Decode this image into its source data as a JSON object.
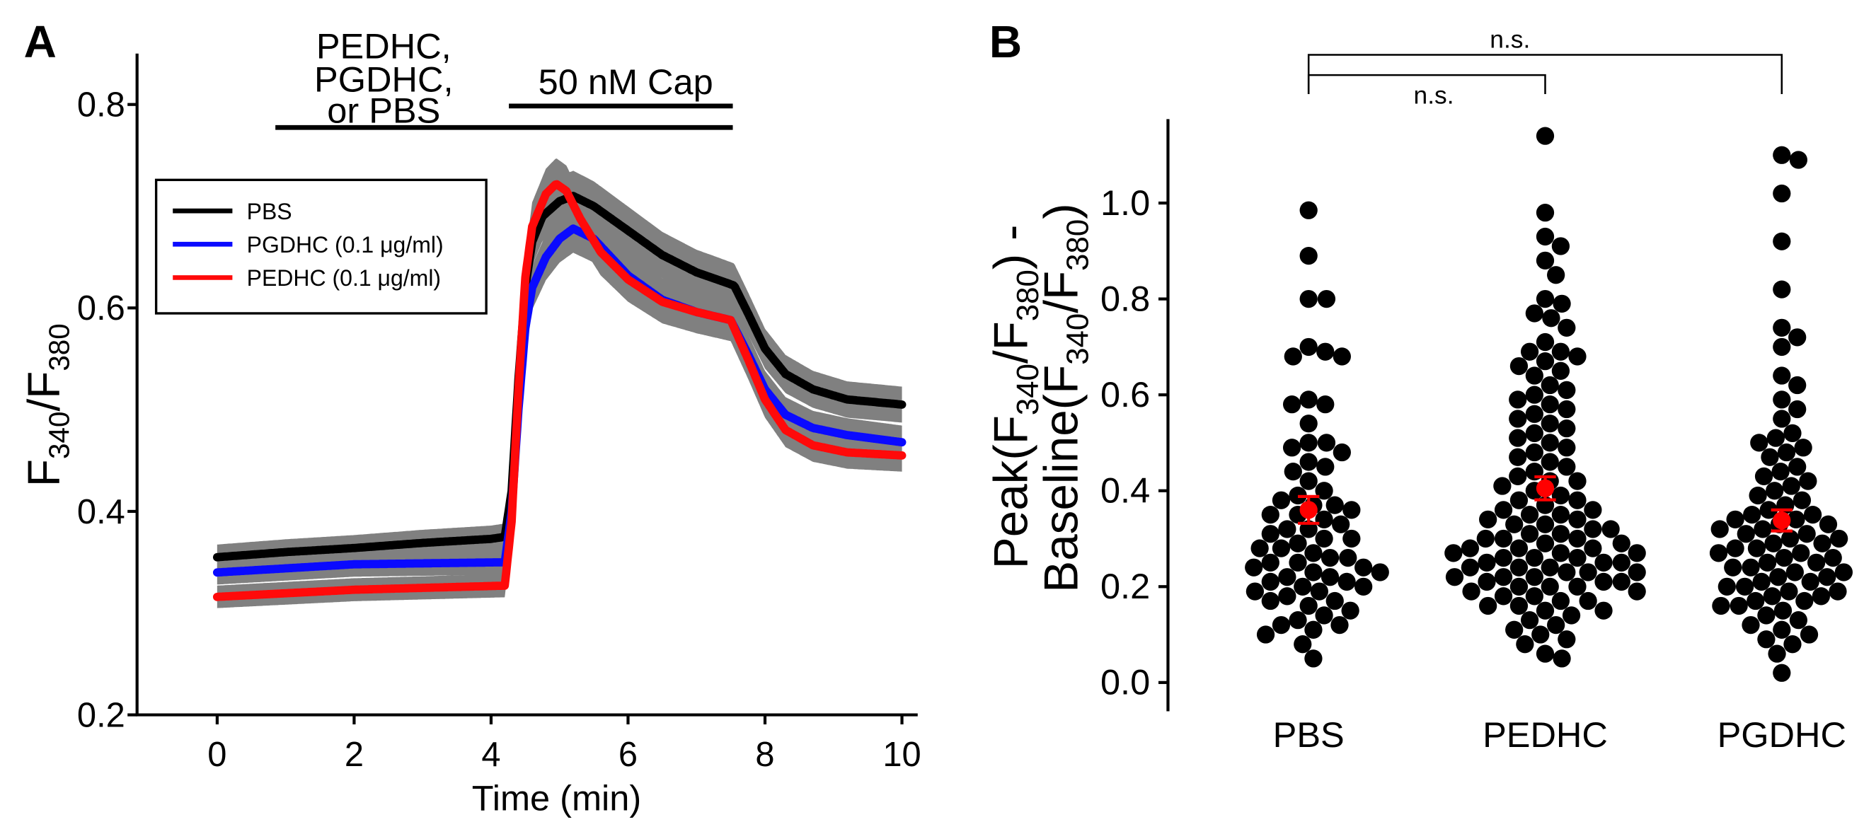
{
  "chart_data": [
    {
      "panel": "A",
      "type": "line",
      "xlabel": "Time (min)",
      "ylabel_parts": [
        "F",
        "340",
        "/F",
        "380"
      ],
      "xlim": [
        -1.17,
        10.23
      ],
      "ylim": [
        0.2,
        0.85
      ],
      "xticks": [
        0,
        2,
        4,
        6,
        8,
        10
      ],
      "xtick_labels": [
        "0",
        "2",
        "4",
        "6",
        "8",
        "10"
      ],
      "yticks": [
        0.2,
        0.4,
        0.6,
        0.8
      ],
      "ytick_labels": [
        "0.2",
        "0.4",
        "0.6",
        "0.8"
      ],
      "treatment_bars": [
        {
          "label_lines": [
            "PEDHC,",
            "PGDHC,",
            "or PBS"
          ],
          "start": 0.85,
          "end": 7.53
        },
        {
          "label_lines": [
            "50 nM Cap"
          ],
          "start": 4.26,
          "end": 7.53
        }
      ],
      "band_color": "#808080",
      "sem_relative": 0.035,
      "legend_position": "upper-left",
      "series": [
        {
          "name": "PBS",
          "color": "#000000",
          "t": [
            0,
            1,
            2,
            3,
            4,
            4.2,
            4.3,
            4.4,
            4.5,
            4.6,
            4.75,
            5.0,
            5.2,
            5.5,
            6.0,
            6.5,
            7.0,
            7.3,
            7.55,
            7.75,
            8.0,
            8.3,
            8.7,
            9.2,
            10
          ],
          "values": [
            0.355,
            0.36,
            0.364,
            0.369,
            0.373,
            0.375,
            0.42,
            0.53,
            0.62,
            0.665,
            0.69,
            0.705,
            0.71,
            0.7,
            0.676,
            0.652,
            0.635,
            0.628,
            0.622,
            0.595,
            0.56,
            0.535,
            0.52,
            0.51,
            0.505
          ]
        },
        {
          "name": "PGDHC (0.1 μg/ml)",
          "color": "#0a0aff",
          "t": [
            0,
            2,
            4.2,
            4.3,
            4.4,
            4.5,
            4.6,
            4.8,
            5.0,
            5.2,
            5.5,
            6.0,
            6.5,
            7.0,
            7.5,
            7.75,
            8.0,
            8.3,
            8.7,
            9.2,
            10
          ],
          "values": [
            0.34,
            0.348,
            0.35,
            0.4,
            0.5,
            0.58,
            0.62,
            0.65,
            0.668,
            0.678,
            0.668,
            0.632,
            0.608,
            0.596,
            0.588,
            0.555,
            0.52,
            0.495,
            0.482,
            0.475,
            0.468
          ]
        },
        {
          "name": "PEDHC (0.1 μg/ml)",
          "color": "#ff0a0a",
          "t": [
            0,
            2,
            4.2,
            4.3,
            4.4,
            4.5,
            4.6,
            4.8,
            4.95,
            5.1,
            5.3,
            5.6,
            6.0,
            6.5,
            7.0,
            7.5,
            7.75,
            8.0,
            8.3,
            8.7,
            9.2,
            10
          ],
          "values": [
            0.316,
            0.323,
            0.327,
            0.39,
            0.52,
            0.63,
            0.68,
            0.712,
            0.722,
            0.715,
            0.688,
            0.655,
            0.628,
            0.606,
            0.596,
            0.588,
            0.55,
            0.51,
            0.48,
            0.465,
            0.458,
            0.455
          ]
        }
      ]
    },
    {
      "panel": "B",
      "type": "scatter",
      "categories": [
        "PBS",
        "PEDHC",
        "PGDHC"
      ],
      "ylabel_line1_parts": [
        "Peak(F",
        "340",
        "/F",
        "380",
        ") -"
      ],
      "ylabel_line2_parts": [
        "Baseline(F",
        "340",
        "/F",
        "380",
        ")"
      ],
      "ylim": [
        -0.06,
        1.175
      ],
      "yticks": [
        0.0,
        0.2,
        0.4,
        0.6,
        0.8,
        1.0
      ],
      "ytick_labels": [
        "0.0",
        "0.2",
        "0.4",
        "0.6",
        "0.8",
        "1.0"
      ],
      "point_color": "#000000",
      "mean_color": "#ff0000",
      "groups": [
        {
          "mean": 0.36,
          "sem": 0.028,
          "values": [
            0.985,
            0.89,
            0.8,
            0.8,
            0.7,
            0.69,
            0.68,
            0.68,
            0.59,
            0.58,
            0.58,
            0.54,
            0.5,
            0.5,
            0.49,
            0.48,
            0.46,
            0.45,
            0.44,
            0.42,
            0.4,
            0.39,
            0.38,
            0.37,
            0.37,
            0.36,
            0.35,
            0.35,
            0.34,
            0.33,
            0.32,
            0.32,
            0.31,
            0.3,
            0.3,
            0.29,
            0.28,
            0.28,
            0.27,
            0.26,
            0.26,
            0.25,
            0.25,
            0.24,
            0.24,
            0.23,
            0.23,
            0.22,
            0.22,
            0.21,
            0.21,
            0.2,
            0.2,
            0.19,
            0.19,
            0.18,
            0.17,
            0.17,
            0.16,
            0.15,
            0.14,
            0.13,
            0.12,
            0.12,
            0.11,
            0.1,
            0.08,
            0.05
          ]
        },
        {
          "mean": 0.405,
          "sem": 0.024,
          "values": [
            1.14,
            0.98,
            0.93,
            0.91,
            0.88,
            0.85,
            0.8,
            0.79,
            0.77,
            0.76,
            0.74,
            0.71,
            0.69,
            0.69,
            0.68,
            0.67,
            0.66,
            0.65,
            0.64,
            0.62,
            0.61,
            0.6,
            0.59,
            0.58,
            0.57,
            0.56,
            0.55,
            0.54,
            0.53,
            0.52,
            0.51,
            0.5,
            0.49,
            0.48,
            0.47,
            0.46,
            0.45,
            0.44,
            0.43,
            0.42,
            0.42,
            0.41,
            0.4,
            0.39,
            0.38,
            0.38,
            0.37,
            0.36,
            0.36,
            0.35,
            0.35,
            0.34,
            0.34,
            0.33,
            0.33,
            0.32,
            0.32,
            0.31,
            0.31,
            0.3,
            0.3,
            0.3,
            0.29,
            0.29,
            0.28,
            0.28,
            0.28,
            0.27,
            0.27,
            0.27,
            0.26,
            0.26,
            0.26,
            0.25,
            0.25,
            0.25,
            0.24,
            0.24,
            0.24,
            0.23,
            0.23,
            0.23,
            0.22,
            0.22,
            0.22,
            0.21,
            0.21,
            0.21,
            0.2,
            0.2,
            0.2,
            0.19,
            0.19,
            0.18,
            0.18,
            0.17,
            0.17,
            0.16,
            0.16,
            0.15,
            0.15,
            0.14,
            0.13,
            0.12,
            0.11,
            0.1,
            0.09,
            0.08,
            0.06,
            0.05
          ]
        },
        {
          "mean": 0.338,
          "sem": 0.022,
          "values": [
            1.1,
            1.09,
            1.02,
            0.92,
            0.82,
            0.74,
            0.72,
            0.7,
            0.64,
            0.62,
            0.59,
            0.57,
            0.55,
            0.52,
            0.51,
            0.5,
            0.49,
            0.48,
            0.47,
            0.45,
            0.44,
            0.43,
            0.42,
            0.41,
            0.4,
            0.39,
            0.38,
            0.37,
            0.36,
            0.35,
            0.35,
            0.34,
            0.34,
            0.33,
            0.33,
            0.32,
            0.32,
            0.31,
            0.31,
            0.3,
            0.3,
            0.29,
            0.29,
            0.28,
            0.28,
            0.27,
            0.27,
            0.26,
            0.26,
            0.25,
            0.25,
            0.24,
            0.24,
            0.23,
            0.23,
            0.22,
            0.22,
            0.21,
            0.21,
            0.2,
            0.2,
            0.19,
            0.19,
            0.18,
            0.18,
            0.17,
            0.17,
            0.16,
            0.16,
            0.15,
            0.14,
            0.13,
            0.12,
            0.11,
            0.1,
            0.09,
            0.08,
            0.06,
            0.02
          ]
        }
      ],
      "significance": [
        {
          "from": "PBS",
          "to": "PEDHC",
          "label": "n.s."
        },
        {
          "from": "PBS",
          "to": "PGDHC",
          "label": "n.s."
        }
      ]
    }
  ]
}
